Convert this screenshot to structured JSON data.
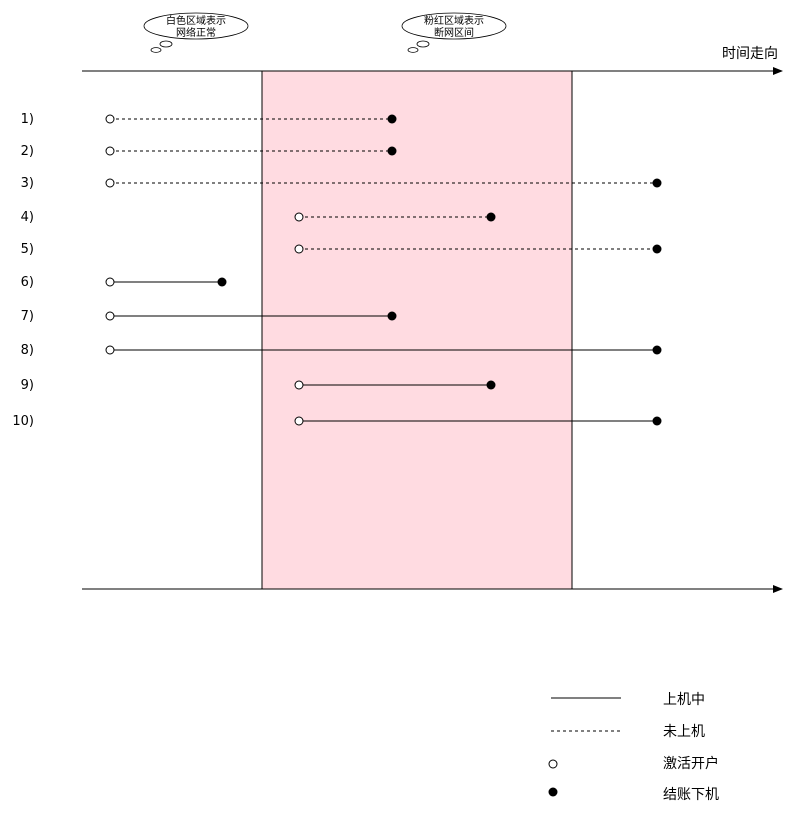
{
  "axis_label": "时间走向",
  "clouds": [
    {
      "id": "normal",
      "lines": [
        "白色区域表示",
        "网络正常"
      ]
    },
    {
      "id": "outage",
      "lines": [
        "粉红区域表示",
        "断网区间"
      ]
    }
  ],
  "colors": {
    "outage_fill": "#ffdbe1",
    "line": "#000000",
    "background": "#ffffff"
  },
  "rows": [
    {
      "label": "1)",
      "style": "dashed",
      "start": "before",
      "end": "during"
    },
    {
      "label": "2)",
      "style": "dashed",
      "start": "before",
      "end": "during"
    },
    {
      "label": "3)",
      "style": "dashed",
      "start": "before",
      "end": "after"
    },
    {
      "label": "4)",
      "style": "dashed",
      "start": "during",
      "end": "during"
    },
    {
      "label": "5)",
      "style": "dashed",
      "start": "during",
      "end": "after"
    },
    {
      "label": "6)",
      "style": "solid",
      "start": "before",
      "end": "before"
    },
    {
      "label": "7)",
      "style": "solid",
      "start": "before",
      "end": "during"
    },
    {
      "label": "8)",
      "style": "solid",
      "start": "before",
      "end": "after"
    },
    {
      "label": "9)",
      "style": "solid",
      "start": "during",
      "end": "during"
    },
    {
      "label": "10)",
      "style": "solid",
      "start": "during",
      "end": "after"
    }
  ],
  "legend": {
    "solid": "上机中",
    "dashed": "未上机",
    "open_circle": "激活开户",
    "filled_circle": "结账下机"
  }
}
